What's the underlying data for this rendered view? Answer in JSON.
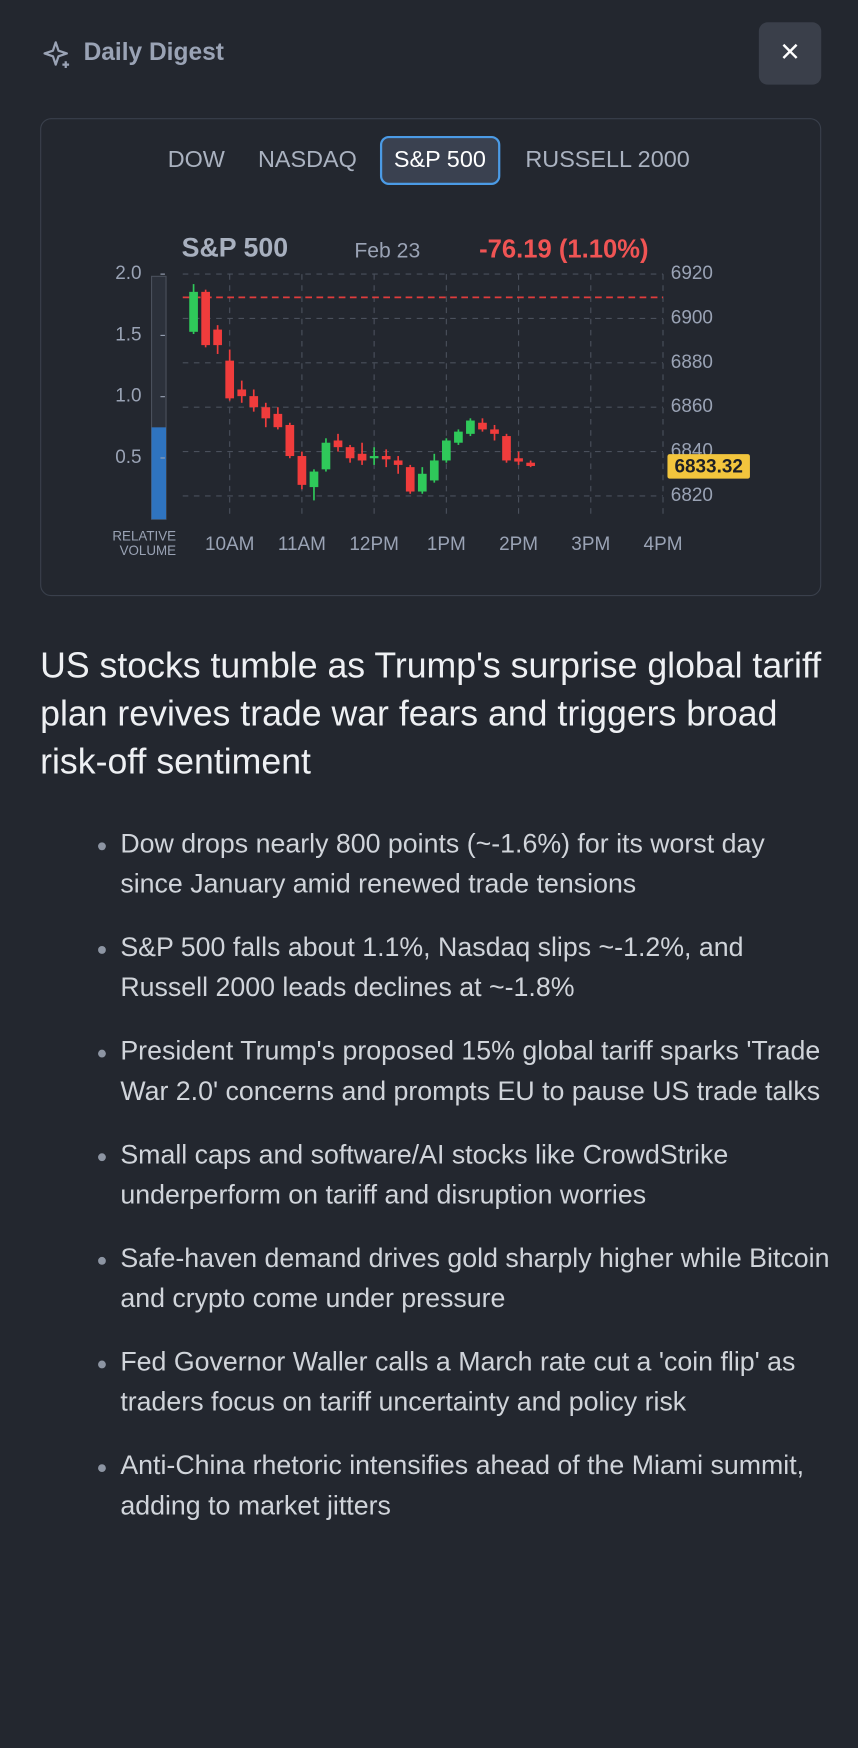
{
  "header": {
    "title": "Daily Digest",
    "close": "×"
  },
  "tabs": {
    "items": [
      "DOW",
      "NASDAQ",
      "S&P 500",
      "RUSSELL 2000"
    ],
    "active": 2
  },
  "chart_data": {
    "type": "candlestick",
    "title": "S&P 500",
    "date": "Feb 23",
    "change": "-76.19 (1.10%)",
    "x": [
      9.5,
      9.667,
      9.833,
      10,
      10.167,
      10.333,
      10.5,
      10.667,
      10.833,
      11,
      11.167,
      11.333,
      11.5,
      11.667,
      11.833,
      12,
      12.167,
      12.333,
      12.5,
      12.667,
      12.833,
      13,
      13.167,
      13.333,
      13.5,
      13.667,
      13.833,
      14,
      14.167
    ],
    "series": [
      {
        "open": [
          6894,
          6912,
          6895,
          6881,
          6868,
          6865,
          6860,
          6857,
          6852,
          6838,
          6824,
          6832,
          6845,
          6842,
          6839,
          6837,
          6838,
          6836,
          6833,
          6822,
          6827,
          6836,
          6844,
          6848,
          6853,
          6850,
          6847,
          6837,
          6835
        ],
        "close": [
          6912,
          6888,
          6888,
          6864,
          6865,
          6860,
          6855,
          6851,
          6838,
          6825,
          6831,
          6844,
          6842,
          6837,
          6836,
          6838,
          6836.5,
          6834,
          6822,
          6830,
          6836,
          6845,
          6849,
          6854,
          6850,
          6848,
          6836,
          6835.5,
          6833.5
        ],
        "high": [
          6915.5,
          6913,
          6897,
          6886,
          6872,
          6868,
          6862,
          6860,
          6853,
          6840,
          6832,
          6846,
          6848,
          6843,
          6844,
          6842,
          6841,
          6838,
          6834,
          6833,
          6839,
          6846,
          6850,
          6855,
          6855,
          6852,
          6848,
          6840,
          6836
        ],
        "low": [
          6893,
          6887,
          6884,
          6863,
          6862,
          6858,
          6851,
          6850,
          6837,
          6823,
          6818,
          6831,
          6840,
          6835,
          6834,
          6834,
          6833,
          6830,
          6821,
          6821,
          6826,
          6835,
          6843,
          6847,
          6849,
          6845,
          6835,
          6834,
          6833
        ],
        "up_color": "#2fc95a",
        "down_color": "#f03c3c"
      }
    ],
    "xlim": [
      9.35,
      16
    ],
    "xticks": [
      {
        "value": 10,
        "label": "10AM"
      },
      {
        "value": 11,
        "label": "11AM"
      },
      {
        "value": 12,
        "label": "12PM"
      },
      {
        "value": 13,
        "label": "1PM"
      },
      {
        "value": 14,
        "label": "2PM"
      },
      {
        "value": 15,
        "label": "3PM"
      },
      {
        "value": 16,
        "label": "4PM"
      }
    ],
    "ylim": [
      6810,
      6920
    ],
    "yticks": [
      6920,
      6900,
      6880,
      6860,
      6840,
      6820
    ],
    "grid": true,
    "reference_line": 6909.51,
    "last_price": 6833.32,
    "volume_label": "RELATIVE VOLUME",
    "volume": 0.75,
    "volume_color": "#2f74c0",
    "volume_lim": [
      0,
      2
    ],
    "volume_ticks": [
      {
        "value": 2,
        "label": "2.0"
      },
      1.5,
      {
        "value": 1,
        "label": "1.0"
      },
      0.5
    ]
  },
  "headline": "US stocks tumble as Trump's surprise global tariff plan revives trade war fears and triggers broad risk-off sentiment",
  "bullets": [
    "Dow drops nearly 800 points (~-1.6%) for its worst day since January amid renewed trade tensions",
    "S&P 500 falls about 1.1%, Nasdaq slips ~-1.2%, and Russell 2000 leads declines at ~-1.8%",
    "President Trump's proposed 15% global tariff sparks 'Trade War 2.0' concerns and prompts EU to pause US trade talks",
    "Small caps and software/AI stocks like CrowdStrike underperform on tariff and disruption worries",
    "Safe-haven demand drives gold sharply higher while Bitcoin and crypto come under pressure",
    "Fed Governor Waller calls a March rate cut a 'coin flip' as traders focus on tariff uncertainty and policy risk",
    "Anti-China rhetoric intensifies ahead of the Miami summit, adding to market jitters"
  ]
}
